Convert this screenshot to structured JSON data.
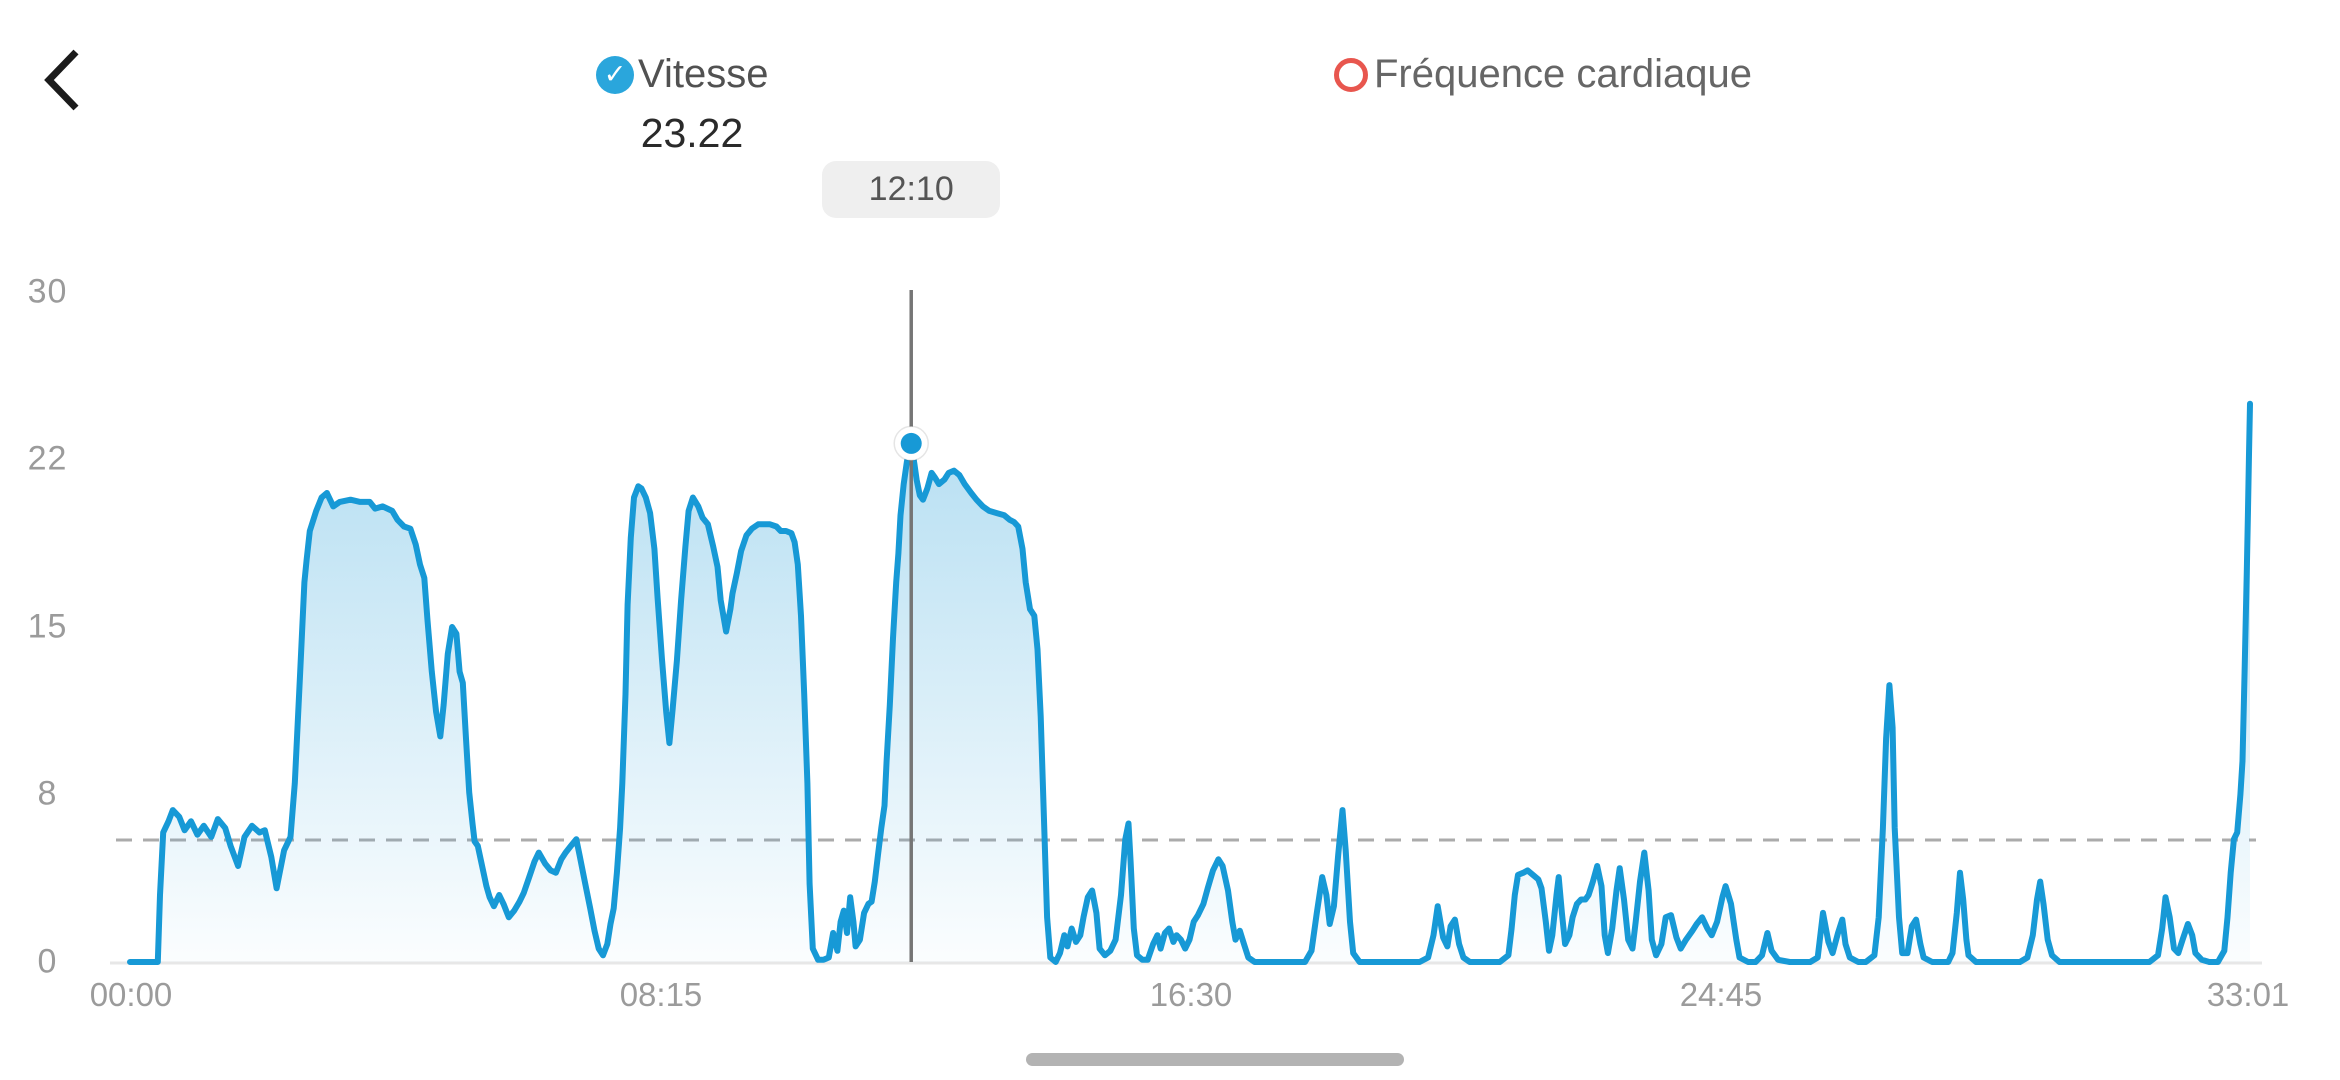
{
  "header": {
    "back_label": "back",
    "series": [
      {
        "label": "Vitesse",
        "checked": true,
        "marker_color": "#2aa6dc",
        "state": "selected"
      },
      {
        "label": "Fréquence cardiaque",
        "checked": false,
        "marker_color": "#e8564e",
        "state": "unselected"
      }
    ]
  },
  "colors": {
    "line": "#1799d6",
    "fill_top": "rgba(54,166,219,0.45)",
    "fill_bottom": "rgba(54,166,219,0.02)",
    "axis_label": "#9b9b9b",
    "baseline": "#e7e7e7",
    "dashed_average": "#ababab",
    "cursor_line": "#757575",
    "tooltip_bg": "#efefef",
    "scrubber": "#b3b3b3"
  },
  "chart_data": {
    "type": "area",
    "title": "Vitesse",
    "x_ticks": [
      "00:00",
      "08:15",
      "16:30",
      "24:45",
      "33:01"
    ],
    "y_ticks": [
      "0",
      "8",
      "15",
      "22",
      "30"
    ],
    "ylim": [
      0,
      30
    ],
    "duration_seconds": 1981,
    "grid": "dashed average line only",
    "legend_position": "top",
    "average_value": 5.46,
    "selected_point": {
      "time": "12:10",
      "seconds": 730,
      "value": 23.22
    },
    "points": [
      [
        0,
        0
      ],
      [
        26,
        0
      ],
      [
        28,
        3
      ],
      [
        31,
        5.8
      ],
      [
        36,
        6.3
      ],
      [
        40,
        6.8
      ],
      [
        46,
        6.5
      ],
      [
        51,
        5.9
      ],
      [
        57,
        6.3
      ],
      [
        63,
        5.7
      ],
      [
        69,
        6.1
      ],
      [
        76,
        5.6
      ],
      [
        82,
        6.4
      ],
      [
        89,
        6
      ],
      [
        94,
        5.2
      ],
      [
        101,
        4.3
      ],
      [
        107,
        5.6
      ],
      [
        114,
        6.1
      ],
      [
        121,
        5.8
      ],
      [
        126,
        5.9
      ],
      [
        132,
        4.7
      ],
      [
        137,
        3.3
      ],
      [
        144,
        5
      ],
      [
        150,
        5.6
      ],
      [
        154,
        8
      ],
      [
        159,
        13
      ],
      [
        163,
        17
      ],
      [
        165,
        18
      ],
      [
        168,
        19.3
      ],
      [
        174,
        20.2
      ],
      [
        179,
        20.8
      ],
      [
        184,
        21
      ],
      [
        190,
        20.4
      ],
      [
        196,
        20.6
      ],
      [
        206,
        20.7
      ],
      [
        215,
        20.6
      ],
      [
        224,
        20.6
      ],
      [
        229,
        20.3
      ],
      [
        236,
        20.4
      ],
      [
        245,
        20.2
      ],
      [
        250,
        19.8
      ],
      [
        256,
        19.5
      ],
      [
        262,
        19.4
      ],
      [
        267,
        18.7
      ],
      [
        271,
        17.8
      ],
      [
        275,
        17.2
      ],
      [
        278,
        15.3
      ],
      [
        282,
        13
      ],
      [
        286,
        11.2
      ],
      [
        290,
        10.1
      ],
      [
        293,
        11.5
      ],
      [
        297,
        13.8
      ],
      [
        301,
        15
      ],
      [
        305,
        14.7
      ],
      [
        308,
        13
      ],
      [
        311,
        12.5
      ],
      [
        314,
        10
      ],
      [
        317,
        7.6
      ],
      [
        320,
        6.2
      ],
      [
        322,
        5.4
      ],
      [
        325,
        5.2
      ],
      [
        329,
        4.3
      ],
      [
        333,
        3.4
      ],
      [
        336,
        2.9
      ],
      [
        340,
        2.5
      ],
      [
        345,
        3
      ],
      [
        349,
        2.6
      ],
      [
        354,
        2
      ],
      [
        359,
        2.3
      ],
      [
        364,
        2.7
      ],
      [
        368,
        3.1
      ],
      [
        373,
        3.8
      ],
      [
        378,
        4.5
      ],
      [
        382,
        4.9
      ],
      [
        388,
        4.4
      ],
      [
        393,
        4.1
      ],
      [
        398,
        4
      ],
      [
        403,
        4.6
      ],
      [
        407,
        4.9
      ],
      [
        412,
        5.2
      ],
      [
        417,
        5.5
      ],
      [
        420,
        4.8
      ],
      [
        425,
        3.6
      ],
      [
        430,
        2.4
      ],
      [
        434,
        1.4
      ],
      [
        438,
        0.6
      ],
      [
        442,
        0.3
      ],
      [
        446,
        0.8
      ],
      [
        449,
        1.7
      ],
      [
        452,
        2.4
      ],
      [
        455,
        4
      ],
      [
        458,
        6
      ],
      [
        460,
        8
      ],
      [
        463,
        12
      ],
      [
        465,
        16
      ],
      [
        468,
        19
      ],
      [
        471,
        20.8
      ],
      [
        475,
        21.3
      ],
      [
        478,
        21.2
      ],
      [
        482,
        20.8
      ],
      [
        486,
        20.1
      ],
      [
        490,
        18.5
      ],
      [
        493,
        16.3
      ],
      [
        497,
        13.6
      ],
      [
        501,
        11.2
      ],
      [
        504,
        9.8
      ],
      [
        507,
        11.3
      ],
      [
        511,
        13.5
      ],
      [
        515,
        16.2
      ],
      [
        519,
        18.6
      ],
      [
        522,
        20.2
      ],
      [
        526,
        20.8
      ],
      [
        531,
        20.4
      ],
      [
        535,
        19.9
      ],
      [
        540,
        19.6
      ],
      [
        545,
        18.6
      ],
      [
        549,
        17.7
      ],
      [
        552,
        16.2
      ],
      [
        557,
        14.8
      ],
      [
        561,
        15.8
      ],
      [
        563,
        16.5
      ],
      [
        567,
        17.4
      ],
      [
        571,
        18.4
      ],
      [
        576,
        19.1
      ],
      [
        581,
        19.4
      ],
      [
        587,
        19.6
      ],
      [
        592,
        19.6
      ],
      [
        598,
        19.6
      ],
      [
        604,
        19.5
      ],
      [
        608,
        19.3
      ],
      [
        613,
        19.3
      ],
      [
        618,
        19.2
      ],
      [
        621,
        18.8
      ],
      [
        624,
        17.8
      ],
      [
        627,
        15.5
      ],
      [
        630,
        12
      ],
      [
        633,
        8
      ],
      [
        635,
        3.5
      ],
      [
        638,
        0.6
      ],
      [
        643,
        0.1
      ],
      [
        648,
        0.1
      ],
      [
        653,
        0.2
      ],
      [
        657,
        1.3
      ],
      [
        661,
        0.5
      ],
      [
        664,
        1.8
      ],
      [
        667,
        2.3
      ],
      [
        670,
        1.3
      ],
      [
        673,
        2.9
      ],
      [
        676,
        1.8
      ],
      [
        678,
        0.7
      ],
      [
        682,
        1
      ],
      [
        686,
        2.2
      ],
      [
        690,
        2.6
      ],
      [
        693,
        2.7
      ],
      [
        696,
        3.6
      ],
      [
        699,
        4.8
      ],
      [
        702,
        6
      ],
      [
        705,
        7
      ],
      [
        707,
        9
      ],
      [
        710,
        11.5
      ],
      [
        713,
        14.5
      ],
      [
        716,
        17
      ],
      [
        718,
        18.3
      ],
      [
        720,
        20
      ],
      [
        723,
        21.4
      ],
      [
        726,
        22.4
      ],
      [
        730,
        23.22
      ],
      [
        733,
        22.3
      ],
      [
        735,
        21.6
      ],
      [
        738,
        20.9
      ],
      [
        741,
        20.7
      ],
      [
        745,
        21.2
      ],
      [
        749,
        21.9
      ],
      [
        752,
        21.7
      ],
      [
        756,
        21.4
      ],
      [
        761,
        21.6
      ],
      [
        765,
        21.9
      ],
      [
        770,
        22
      ],
      [
        775,
        21.8
      ],
      [
        780,
        21.4
      ],
      [
        786,
        21
      ],
      [
        791,
        20.7
      ],
      [
        797,
        20.4
      ],
      [
        803,
        20.2
      ],
      [
        810,
        20.1
      ],
      [
        817,
        20
      ],
      [
        822,
        19.8
      ],
      [
        826,
        19.7
      ],
      [
        830,
        19.5
      ],
      [
        834,
        18.5
      ],
      [
        837,
        17
      ],
      [
        841,
        15.8
      ],
      [
        845,
        15.5
      ],
      [
        848,
        14
      ],
      [
        851,
        11
      ],
      [
        854,
        6.5
      ],
      [
        857,
        2
      ],
      [
        860,
        0.2
      ],
      [
        865,
        0
      ],
      [
        869,
        0.4
      ],
      [
        873,
        1.2
      ],
      [
        876,
        0.7
      ],
      [
        880,
        1.5
      ],
      [
        884,
        0.9
      ],
      [
        888,
        1.2
      ],
      [
        891,
        2
      ],
      [
        895,
        2.9
      ],
      [
        899,
        3.2
      ],
      [
        903,
        2.2
      ],
      [
        906,
        0.6
      ],
      [
        911,
        0.3
      ],
      [
        916,
        0.5
      ],
      [
        921,
        1
      ],
      [
        926,
        3
      ],
      [
        930,
        5.5
      ],
      [
        933,
        6.2
      ],
      [
        935,
        4.5
      ],
      [
        938,
        1.5
      ],
      [
        941,
        0.3
      ],
      [
        946,
        0.1
      ],
      [
        951,
        0.1
      ],
      [
        956,
        0.8
      ],
      [
        960,
        1.2
      ],
      [
        963,
        0.6
      ],
      [
        967,
        1.3
      ],
      [
        971,
        1.5
      ],
      [
        975,
        0.9
      ],
      [
        978,
        1.2
      ],
      [
        982,
        1
      ],
      [
        986,
        0.6
      ],
      [
        990,
        1
      ],
      [
        994,
        1.8
      ],
      [
        998,
        2.1
      ],
      [
        1003,
        2.6
      ],
      [
        1007,
        3.3
      ],
      [
        1012,
        4.1
      ],
      [
        1017,
        4.6
      ],
      [
        1021,
        4.3
      ],
      [
        1026,
        3.2
      ],
      [
        1030,
        1.8
      ],
      [
        1033,
        1
      ],
      [
        1037,
        1.4
      ],
      [
        1041,
        0.8
      ],
      [
        1045,
        0.2
      ],
      [
        1051,
        0
      ],
      [
        1061,
        0
      ],
      [
        1070,
        0
      ],
      [
        1079,
        0
      ],
      [
        1089,
        0
      ],
      [
        1098,
        0
      ],
      [
        1104,
        0.5
      ],
      [
        1109,
        2.2
      ],
      [
        1114,
        3.8
      ],
      [
        1118,
        3
      ],
      [
        1121,
        1.7
      ],
      [
        1125,
        2.5
      ],
      [
        1129,
        4.8
      ],
      [
        1133,
        6.8
      ],
      [
        1136,
        5
      ],
      [
        1140,
        1.8
      ],
      [
        1143,
        0.4
      ],
      [
        1149,
        0
      ],
      [
        1159,
        0
      ],
      [
        1168,
        0
      ],
      [
        1177,
        0
      ],
      [
        1187,
        0
      ],
      [
        1196,
        0
      ],
      [
        1205,
        0
      ],
      [
        1213,
        0.2
      ],
      [
        1218,
        1.2
      ],
      [
        1222,
        2.5
      ],
      [
        1227,
        1.1
      ],
      [
        1231,
        0.7
      ],
      [
        1234,
        1.6
      ],
      [
        1238,
        1.9
      ],
      [
        1242,
        0.8
      ],
      [
        1246,
        0.2
      ],
      [
        1252,
        0
      ],
      [
        1261,
        0
      ],
      [
        1271,
        0
      ],
      [
        1280,
        0
      ],
      [
        1288,
        0.3
      ],
      [
        1291,
        1.5
      ],
      [
        1294,
        3
      ],
      [
        1297,
        3.9
      ],
      [
        1302,
        4
      ],
      [
        1306,
        4.1
      ],
      [
        1311,
        3.9
      ],
      [
        1316,
        3.7
      ],
      [
        1319,
        3.3
      ],
      [
        1323,
        1.8
      ],
      [
        1326,
        0.5
      ],
      [
        1329,
        1.2
      ],
      [
        1333,
        3
      ],
      [
        1335,
        3.8
      ],
      [
        1338,
        2.2
      ],
      [
        1341,
        0.8
      ],
      [
        1345,
        1.2
      ],
      [
        1348,
        2
      ],
      [
        1352,
        2.6
      ],
      [
        1356,
        2.8
      ],
      [
        1360,
        2.8
      ],
      [
        1363,
        3
      ],
      [
        1367,
        3.6
      ],
      [
        1371,
        4.3
      ],
      [
        1375,
        3.4
      ],
      [
        1378,
        1.2
      ],
      [
        1381,
        0.4
      ],
      [
        1385,
        1.5
      ],
      [
        1389,
        3.2
      ],
      [
        1392,
        4.2
      ],
      [
        1396,
        2.8
      ],
      [
        1400,
        1
      ],
      [
        1404,
        0.6
      ],
      [
        1407,
        1.8
      ],
      [
        1411,
        3.6
      ],
      [
        1415,
        4.9
      ],
      [
        1419,
        3.2
      ],
      [
        1422,
        1
      ],
      [
        1426,
        0.3
      ],
      [
        1431,
        0.8
      ],
      [
        1435,
        2
      ],
      [
        1440,
        2.1
      ],
      [
        1445,
        1.1
      ],
      [
        1449,
        0.6
      ],
      [
        1454,
        1
      ],
      [
        1460,
        1.4
      ],
      [
        1464,
        1.7
      ],
      [
        1469,
        2
      ],
      [
        1474,
        1.5
      ],
      [
        1478,
        1.2
      ],
      [
        1483,
        1.8
      ],
      [
        1488,
        2.9
      ],
      [
        1491,
        3.4
      ],
      [
        1496,
        2.6
      ],
      [
        1501,
        1
      ],
      [
        1504,
        0.2
      ],
      [
        1512,
        0
      ],
      [
        1519,
        0
      ],
      [
        1525,
        0.3
      ],
      [
        1530,
        1.3
      ],
      [
        1534,
        0.5
      ],
      [
        1540,
        0.1
      ],
      [
        1551,
        0
      ],
      [
        1560,
        0
      ],
      [
        1570,
        0
      ],
      [
        1577,
        0.2
      ],
      [
        1582,
        2.2
      ],
      [
        1587,
        0.9
      ],
      [
        1591,
        0.4
      ],
      [
        1596,
        1.3
      ],
      [
        1600,
        1.9
      ],
      [
        1603,
        0.8
      ],
      [
        1607,
        0.2
      ],
      [
        1615,
        0
      ],
      [
        1622,
        0
      ],
      [
        1630,
        0.3
      ],
      [
        1634,
        2
      ],
      [
        1638,
        6
      ],
      [
        1641,
        10
      ],
      [
        1644,
        12.4
      ],
      [
        1647,
        10.5
      ],
      [
        1649,
        6
      ],
      [
        1653,
        2
      ],
      [
        1656,
        0.4
      ],
      [
        1661,
        0.4
      ],
      [
        1665,
        1.6
      ],
      [
        1669,
        1.9
      ],
      [
        1673,
        0.8
      ],
      [
        1676,
        0.2
      ],
      [
        1684,
        0
      ],
      [
        1691,
        0
      ],
      [
        1699,
        0
      ],
      [
        1703,
        0.4
      ],
      [
        1707,
        2.2
      ],
      [
        1710,
        4
      ],
      [
        1713,
        2.8
      ],
      [
        1716,
        1
      ],
      [
        1718,
        0.3
      ],
      [
        1725,
        0
      ],
      [
        1732,
        0
      ],
      [
        1740,
        0
      ],
      [
        1747,
        0
      ],
      [
        1757,
        0
      ],
      [
        1766,
        0
      ],
      [
        1773,
        0.2
      ],
      [
        1778,
        1.2
      ],
      [
        1782,
        2.8
      ],
      [
        1785,
        3.6
      ],
      [
        1788,
        2.6
      ],
      [
        1792,
        1
      ],
      [
        1796,
        0.3
      ],
      [
        1803,
        0
      ],
      [
        1813,
        0
      ],
      [
        1822,
        0
      ],
      [
        1831,
        0
      ],
      [
        1841,
        0
      ],
      [
        1850,
        0
      ],
      [
        1859,
        0
      ],
      [
        1869,
        0
      ],
      [
        1878,
        0
      ],
      [
        1887,
        0
      ],
      [
        1895,
        0.3
      ],
      [
        1899,
        1.5
      ],
      [
        1902,
        2.9
      ],
      [
        1906,
        2
      ],
      [
        1910,
        0.6
      ],
      [
        1914,
        0.4
      ],
      [
        1918,
        1
      ],
      [
        1923,
        1.7
      ],
      [
        1927,
        1.2
      ],
      [
        1930,
        0.4
      ],
      [
        1936,
        0.1
      ],
      [
        1943,
        0
      ],
      [
        1951,
        0
      ],
      [
        1957,
        0.5
      ],
      [
        1960,
        2
      ],
      [
        1963,
        4
      ],
      [
        1966,
        5.5
      ],
      [
        1969,
        5.8
      ],
      [
        1972,
        7.5
      ],
      [
        1974,
        9
      ],
      [
        1976,
        13
      ],
      [
        1978,
        17.5
      ],
      [
        1979,
        20
      ],
      [
        1980,
        22.5
      ],
      [
        1981,
        25
      ]
    ]
  }
}
